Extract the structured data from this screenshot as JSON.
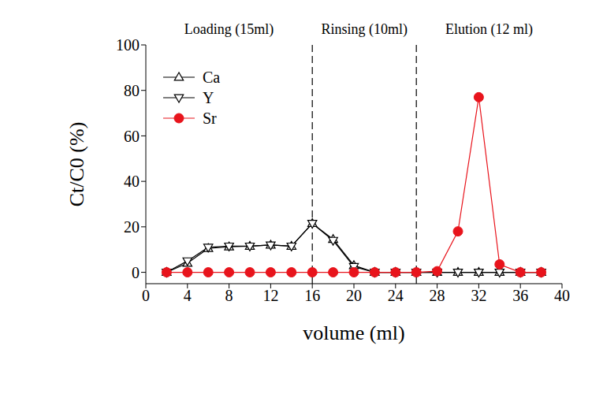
{
  "chart_data": {
    "type": "line",
    "x_label": "volume (ml)",
    "y_label": "Ct/C0 (%)",
    "x": [
      2,
      4,
      6,
      8,
      10,
      12,
      14,
      16,
      18,
      20,
      22,
      24,
      26,
      28,
      30,
      32,
      34,
      36,
      38
    ],
    "series": [
      {
        "name": "Ca",
        "color": "#000000",
        "marker": "triangle-up",
        "values": [
          0,
          4,
          10.5,
          11.2,
          11.5,
          12,
          11.5,
          21.5,
          14.5,
          3,
          0,
          0,
          0,
          0,
          0,
          0,
          0,
          0,
          0
        ]
      },
      {
        "name": "Y",
        "color": "#000000",
        "marker": "triangle-down",
        "values": [
          0,
          5,
          11,
          11.5,
          11.5,
          12,
          11.5,
          21.5,
          14,
          2.5,
          0,
          0,
          0,
          0,
          0,
          0,
          0,
          0,
          0
        ]
      },
      {
        "name": "Sr",
        "color": "#e8141c",
        "marker": "circle",
        "values": [
          0,
          0,
          0,
          0,
          0,
          0,
          0,
          0,
          0,
          0,
          0,
          0,
          0,
          0.5,
          18,
          77,
          3.5,
          0,
          0
        ]
      }
    ],
    "vlines": [
      16,
      26
    ],
    "annotations": [
      "Loading (15ml)",
      "Rinsing (10ml)",
      "Elution (12 ml)"
    ],
    "xlim": [
      0,
      40
    ],
    "xticks": [
      0,
      4,
      8,
      12,
      16,
      20,
      24,
      28,
      32,
      36,
      40
    ],
    "ylim": [
      -5,
      100
    ],
    "yticks": [
      0,
      20,
      40,
      60,
      80,
      100
    ],
    "legend": "upper left",
    "grid": false
  }
}
